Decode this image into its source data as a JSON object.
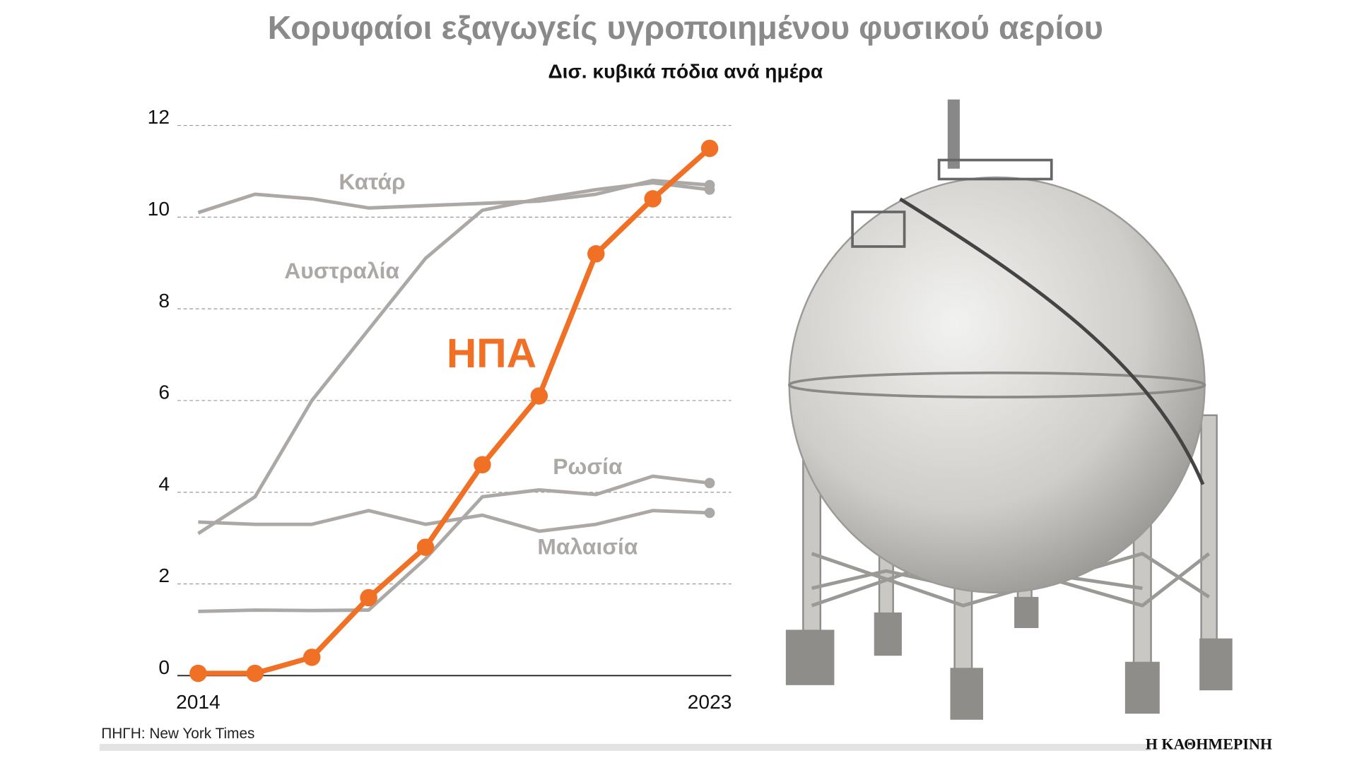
{
  "chart_data": {
    "type": "line",
    "title": "Κορυφαίοι εξαγωγείς υγροποιημένου φυσικού αερίου",
    "subtitle": "Δισ. κυβικά πόδια ανά ημέρα",
    "source": "ΠΗΓΗ: New York Times",
    "brand": "Η ΚΑΘΗΜΕΡΙΝΗ",
    "x": [
      2014,
      2015,
      2016,
      2017,
      2018,
      2019,
      2020,
      2021,
      2022,
      2023
    ],
    "xlim": [
      2014,
      2023
    ],
    "xticks": [
      2014,
      2023
    ],
    "ylim": [
      0,
      12
    ],
    "yticks": [
      0,
      2,
      4,
      6,
      8,
      10,
      12
    ],
    "grid": true,
    "series": [
      {
        "name": "Κατάρ",
        "color": "#aca8a5",
        "marker": "last",
        "values": [
          10.1,
          10.5,
          10.4,
          10.2,
          10.25,
          10.3,
          10.35,
          10.5,
          10.8,
          10.7
        ]
      },
      {
        "name": "Αυστραλία",
        "color": "#aca8a5",
        "marker": "last",
        "values": [
          3.1,
          3.9,
          6.0,
          7.55,
          9.1,
          10.15,
          10.4,
          10.6,
          10.75,
          10.6
        ]
      },
      {
        "name": "Ρωσία",
        "color": "#aca8a5",
        "marker": "last",
        "values": [
          1.4,
          1.43,
          1.42,
          1.43,
          2.55,
          3.9,
          4.05,
          3.95,
          4.35,
          4.2
        ]
      },
      {
        "name": "Μαλαισία",
        "color": "#aca8a5",
        "marker": "last",
        "values": [
          3.35,
          3.3,
          3.3,
          3.6,
          3.3,
          3.5,
          3.15,
          3.3,
          3.6,
          3.55
        ]
      },
      {
        "name": "ΗΠΑ",
        "color": "#f07026",
        "marker": "all",
        "values": [
          0.05,
          0.05,
          0.4,
          1.7,
          2.8,
          4.6,
          6.1,
          9.2,
          10.4,
          11.5
        ]
      }
    ]
  }
}
